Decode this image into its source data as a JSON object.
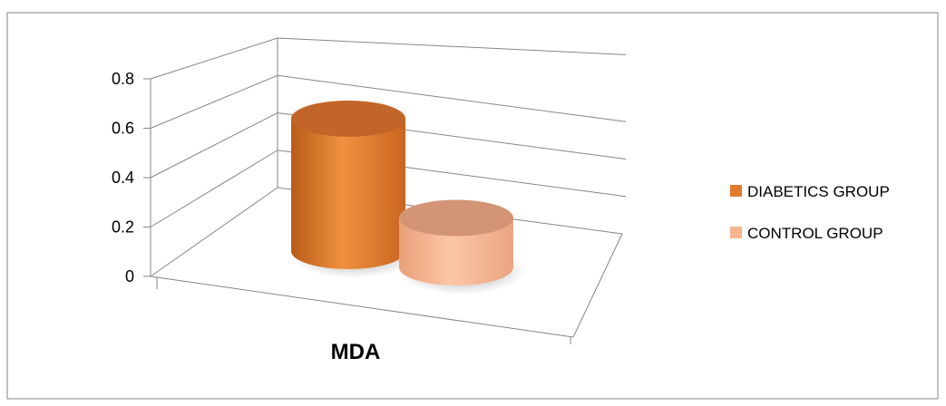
{
  "chart_data": {
    "type": "bar",
    "style": "3d-cylinder",
    "categories": [
      "MDA"
    ],
    "series": [
      {
        "name": "DIABETICS GROUP",
        "values": [
          0.67
        ],
        "color": "#E07B2E"
      },
      {
        "name": "CONTROL GROUP",
        "values": [
          0.25
        ],
        "color": "#F7B68F"
      }
    ],
    "ylim": [
      0,
      0.8
    ],
    "yticks": [
      "0",
      "0.2",
      "0.4",
      "0.6",
      "0.8"
    ],
    "grid": true,
    "legend_position": "right",
    "title": "",
    "xlabel": "",
    "ylabel": ""
  }
}
